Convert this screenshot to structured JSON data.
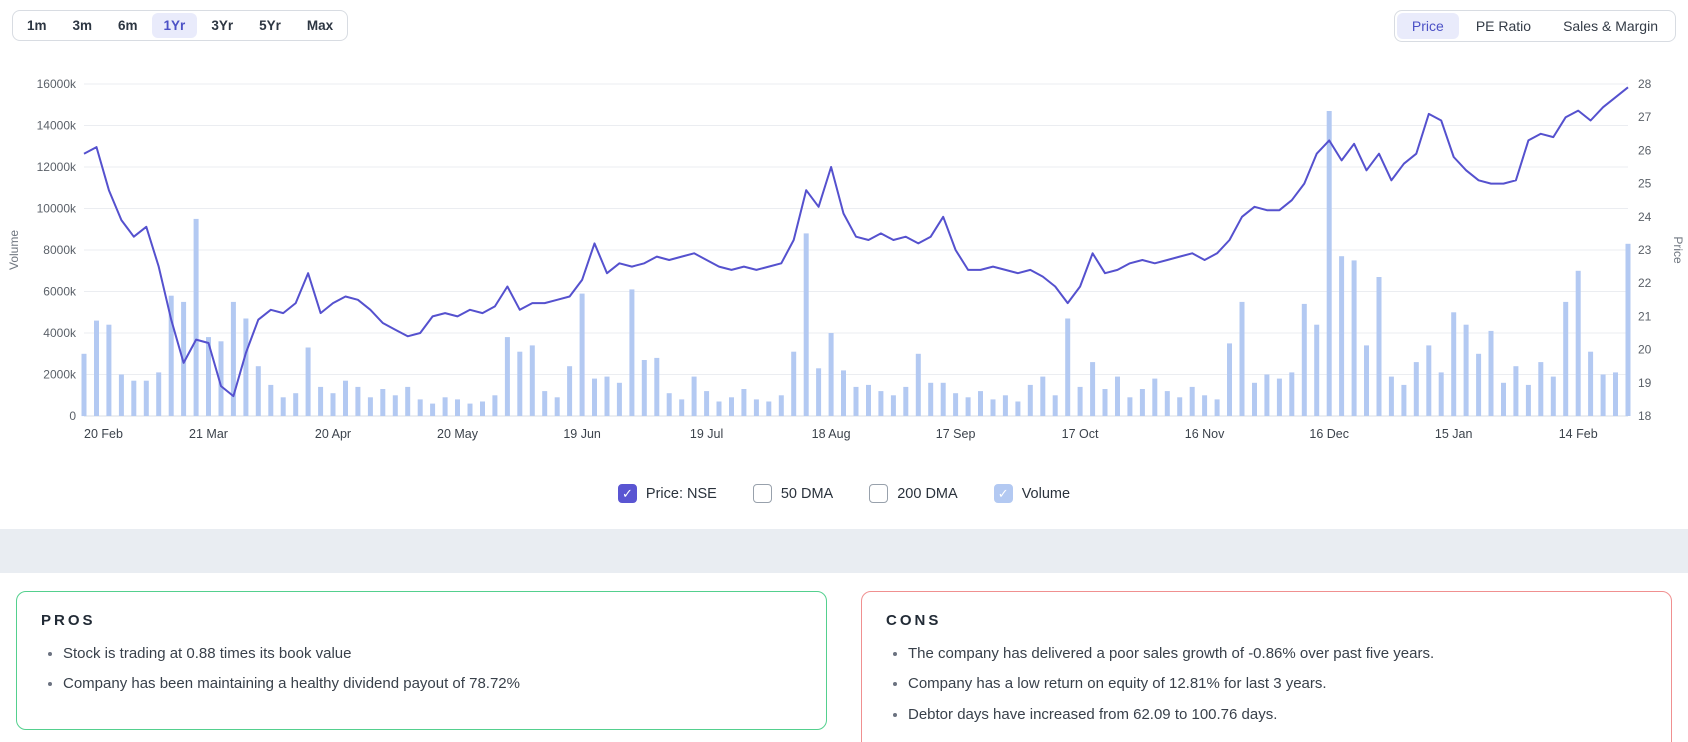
{
  "icons": {
    "check": "✓"
  },
  "colors": {
    "accent": "#4c51c6",
    "active_pill_bg": "#e9ebfb",
    "price_line": "#5551ce",
    "volume_bar": "#b3c9f2",
    "pros_border": "#54d08e",
    "cons_border": "#f09090",
    "divider_band": "#e9edf2"
  },
  "toolbar": {
    "ranges": [
      {
        "label": "1m",
        "active": false
      },
      {
        "label": "3m",
        "active": false
      },
      {
        "label": "6m",
        "active": false
      },
      {
        "label": "1Yr",
        "active": true
      },
      {
        "label": "3Yr",
        "active": false
      },
      {
        "label": "5Yr",
        "active": false
      },
      {
        "label": "Max",
        "active": false
      }
    ],
    "views": [
      {
        "label": "Price",
        "active": true
      },
      {
        "label": "PE Ratio",
        "active": false
      },
      {
        "label": "Sales & Margin",
        "active": false
      }
    ]
  },
  "legend": [
    {
      "label": "Price: NSE",
      "checked": true,
      "color": "#5a55d2"
    },
    {
      "label": "50 DMA",
      "checked": false,
      "color": ""
    },
    {
      "label": "200 DMA",
      "checked": false,
      "color": ""
    },
    {
      "label": "Volume",
      "checked": true,
      "color": "#b3c9f2"
    }
  ],
  "pros": {
    "title": "PROS",
    "items": [
      "Stock is trading at 0.88 times its book value",
      "Company has been maintaining a healthy dividend payout of 78.72%"
    ]
  },
  "cons": {
    "title": "CONS",
    "items": [
      "The company has delivered a poor sales growth of -0.86% over past five years.",
      "Company has a low return on equity of 12.81% for last 3 years.",
      "Debtor days have increased from 62.09 to 100.76 days."
    ]
  },
  "chart_data": {
    "type": "line+bar",
    "title": "1 year price and volume chart",
    "x_tick_labels": [
      "20 Feb",
      "21 Mar",
      "20 Apr",
      "20 May",
      "19 Jun",
      "19 Jul",
      "18 Aug",
      "17 Sep",
      "17 Oct",
      "16 Nov",
      "16 Dec",
      "15 Jan",
      "14 Feb"
    ],
    "x_tick_indices": [
      0,
      10,
      20,
      30,
      40,
      50,
      60,
      70,
      80,
      90,
      100,
      110,
      120
    ],
    "left_axis": {
      "label": "Volume",
      "unit": "k",
      "min": 0,
      "max": 16000,
      "ticks": [
        "0",
        "2000k",
        "4000k",
        "6000k",
        "8000k",
        "10000k",
        "12000k",
        "14000k",
        "16000k"
      ]
    },
    "right_axis": {
      "label": "Price",
      "min": 18,
      "max": 28,
      "ticks": [
        "18",
        "19",
        "20",
        "21",
        "22",
        "23",
        "24",
        "25",
        "26",
        "27",
        "28"
      ]
    },
    "grid": "horizontal",
    "legend_position": "bottom",
    "series": [
      {
        "name": "Price: NSE",
        "type": "line",
        "axis": "right",
        "color": "#5551ce",
        "values": [
          25.9,
          26.1,
          24.8,
          23.9,
          23.4,
          23.7,
          22.5,
          20.9,
          19.6,
          20.3,
          20.2,
          18.9,
          18.6,
          19.9,
          20.9,
          21.2,
          21.1,
          21.4,
          22.3,
          21.1,
          21.4,
          21.6,
          21.5,
          21.2,
          20.8,
          20.6,
          20.4,
          20.5,
          21.0,
          21.1,
          21.0,
          21.2,
          21.1,
          21.3,
          21.9,
          21.2,
          21.4,
          21.4,
          21.5,
          21.6,
          22.1,
          23.2,
          22.3,
          22.6,
          22.5,
          22.6,
          22.8,
          22.7,
          22.8,
          22.9,
          22.7,
          22.5,
          22.4,
          22.5,
          22.4,
          22.5,
          22.6,
          23.3,
          24.8,
          24.3,
          25.5,
          24.1,
          23.4,
          23.3,
          23.5,
          23.3,
          23.4,
          23.2,
          23.4,
          24.0,
          23.0,
          22.4,
          22.4,
          22.5,
          22.4,
          22.3,
          22.4,
          22.2,
          21.9,
          21.4,
          21.9,
          22.9,
          22.3,
          22.4,
          22.6,
          22.7,
          22.6,
          22.7,
          22.8,
          22.9,
          22.7,
          22.9,
          23.3,
          24.0,
          24.3,
          24.2,
          24.2,
          24.5,
          25.0,
          25.9,
          26.3,
          25.7,
          26.2,
          25.4,
          25.9,
          25.1,
          25.6,
          25.9,
          27.1,
          26.9,
          25.8,
          25.4,
          25.1,
          25.0,
          25.0,
          25.1,
          26.3,
          26.5,
          26.4,
          27.0,
          27.2,
          26.9,
          27.3,
          27.6,
          27.9
        ]
      },
      {
        "name": "Volume",
        "type": "bar",
        "axis": "left",
        "color": "#b3c9f2",
        "values": [
          3000,
          4600,
          4400,
          2000,
          1700,
          1700,
          2100,
          5800,
          5500,
          9500,
          3800,
          3600,
          5500,
          4700,
          2400,
          1500,
          900,
          1100,
          3300,
          1400,
          1100,
          1700,
          1400,
          900,
          1300,
          1000,
          1400,
          800,
          600,
          900,
          800,
          600,
          700,
          1000,
          3800,
          3100,
          3400,
          1200,
          900,
          2400,
          5900,
          1800,
          1900,
          1600,
          6100,
          2700,
          2800,
          1100,
          800,
          1900,
          1200,
          700,
          900,
          1300,
          800,
          700,
          1000,
          3100,
          8800,
          2300,
          4000,
          2200,
          1400,
          1500,
          1200,
          1000,
          1400,
          3000,
          1600,
          1600,
          1100,
          900,
          1200,
          800,
          1000,
          700,
          1500,
          1900,
          1000,
          4700,
          1400,
          2600,
          1300,
          1900,
          900,
          1300,
          1800,
          1200,
          900,
          1400,
          1000,
          800,
          3500,
          5500,
          1600,
          2000,
          1800,
          2100,
          5400,
          4400,
          14700,
          7700,
          7500,
          3400,
          6700,
          1900,
          1500,
          2600,
          3400,
          2100,
          5000,
          4400,
          3000,
          4100,
          1600,
          2400,
          1500,
          2600,
          1900,
          5500,
          7000,
          3100,
          2000,
          2100,
          8300
        ]
      }
    ]
  }
}
